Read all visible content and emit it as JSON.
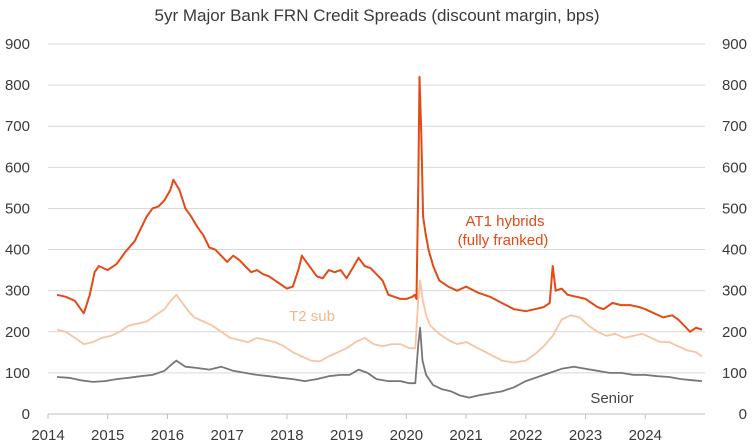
{
  "chart_data": {
    "type": "line",
    "title": "5yr Major Bank FRN Credit Spreads (discount margin, bps)",
    "xlabel": "",
    "ylabel": "",
    "xlim": [
      2014.0,
      2025.0
    ],
    "ylim": [
      0,
      900
    ],
    "yticks": [
      "0",
      "100",
      "200",
      "300",
      "400",
      "500",
      "600",
      "700",
      "800",
      "900"
    ],
    "xticks": [
      "2014",
      "2015",
      "2016",
      "2017",
      "2018",
      "2019",
      "2020",
      "2021",
      "2022",
      "2023",
      "2024"
    ],
    "grid": true,
    "legend": "none (series labelled directly on chart)",
    "series": [
      {
        "name": "AT1 hybrids\n(fully franked)",
        "label_lines": [
          "AT1 hybrids",
          "(fully franked)"
        ],
        "color": "#e34a16",
        "x": [
          2014.15,
          2014.3,
          2014.45,
          2014.55,
          2014.6,
          2014.7,
          2014.78,
          2014.85,
          2015.0,
          2015.15,
          2015.3,
          2015.45,
          2015.55,
          2015.65,
          2015.75,
          2015.85,
          2015.95,
          2016.05,
          2016.1,
          2016.2,
          2016.3,
          2016.4,
          2016.5,
          2016.6,
          2016.7,
          2016.8,
          2016.9,
          2017.0,
          2017.1,
          2017.2,
          2017.3,
          2017.4,
          2017.5,
          2017.6,
          2017.7,
          2017.8,
          2017.9,
          2018.0,
          2018.1,
          2018.2,
          2018.25,
          2018.3,
          2018.4,
          2018.5,
          2018.6,
          2018.7,
          2018.8,
          2018.9,
          2019.0,
          2019.1,
          2019.2,
          2019.3,
          2019.4,
          2019.5,
          2019.6,
          2019.7,
          2019.8,
          2019.9,
          2020.0,
          2020.1,
          2020.14,
          2020.17,
          2020.2,
          2020.22,
          2020.25,
          2020.28,
          2020.32,
          2020.37,
          2020.45,
          2020.55,
          2020.7,
          2020.85,
          2021.0,
          2021.2,
          2021.4,
          2021.6,
          2021.8,
          2022.0,
          2022.15,
          2022.3,
          2022.4,
          2022.45,
          2022.5,
          2022.6,
          2022.7,
          2022.85,
          2023.0,
          2023.1,
          2023.2,
          2023.3,
          2023.45,
          2023.6,
          2023.75,
          2023.9,
          2024.0,
          2024.15,
          2024.3,
          2024.45,
          2024.55,
          2024.65,
          2024.75,
          2024.85,
          2024.95
        ],
        "values": [
          290,
          285,
          275,
          255,
          245,
          290,
          345,
          360,
          350,
          365,
          395,
          420,
          450,
          480,
          500,
          505,
          520,
          545,
          570,
          545,
          500,
          480,
          455,
          435,
          405,
          400,
          385,
          370,
          385,
          375,
          360,
          345,
          350,
          340,
          335,
          325,
          315,
          305,
          310,
          355,
          385,
          375,
          355,
          335,
          330,
          350,
          345,
          350,
          330,
          355,
          380,
          360,
          355,
          340,
          325,
          290,
          285,
          280,
          280,
          285,
          290,
          280,
          560,
          820,
          680,
          480,
          440,
          400,
          360,
          325,
          310,
          300,
          310,
          295,
          285,
          270,
          255,
          250,
          255,
          260,
          270,
          360,
          300,
          305,
          290,
          285,
          280,
          270,
          260,
          255,
          270,
          265,
          265,
          260,
          255,
          245,
          235,
          240,
          230,
          215,
          200,
          210,
          205
        ]
      },
      {
        "name": "T2 sub",
        "color": "#f5c4a4",
        "x": [
          2014.15,
          2014.3,
          2014.45,
          2014.6,
          2014.75,
          2014.9,
          2015.05,
          2015.2,
          2015.35,
          2015.5,
          2015.65,
          2015.8,
          2015.95,
          2016.05,
          2016.15,
          2016.25,
          2016.35,
          2016.45,
          2016.6,
          2016.75,
          2016.9,
          2017.05,
          2017.2,
          2017.35,
          2017.5,
          2017.65,
          2017.8,
          2017.95,
          2018.1,
          2018.25,
          2018.4,
          2018.55,
          2018.7,
          2018.85,
          2019.0,
          2019.15,
          2019.3,
          2019.45,
          2019.6,
          2019.75,
          2019.9,
          2020.05,
          2020.15,
          2020.2,
          2020.23,
          2020.27,
          2020.33,
          2020.4,
          2020.55,
          2020.7,
          2020.85,
          2021.0,
          2021.2,
          2021.4,
          2021.6,
          2021.8,
          2022.0,
          2022.15,
          2022.3,
          2022.45,
          2022.6,
          2022.75,
          2022.9,
          2023.05,
          2023.2,
          2023.35,
          2023.5,
          2023.65,
          2023.8,
          2023.95,
          2024.1,
          2024.25,
          2024.4,
          2024.55,
          2024.7,
          2024.85,
          2024.95
        ],
        "values": [
          205,
          200,
          185,
          170,
          175,
          185,
          190,
          200,
          215,
          220,
          225,
          240,
          255,
          275,
          290,
          270,
          250,
          235,
          225,
          215,
          200,
          185,
          180,
          175,
          185,
          180,
          175,
          165,
          150,
          140,
          130,
          128,
          140,
          150,
          160,
          175,
          185,
          170,
          165,
          170,
          170,
          160,
          160,
          280,
          325,
          280,
          240,
          215,
          195,
          180,
          170,
          175,
          160,
          145,
          130,
          125,
          130,
          145,
          165,
          190,
          230,
          240,
          235,
          215,
          200,
          190,
          195,
          185,
          190,
          195,
          185,
          175,
          175,
          165,
          155,
          150,
          140
        ]
      },
      {
        "name": "Senior",
        "color": "#777777",
        "x": [
          2014.15,
          2014.35,
          2014.55,
          2014.75,
          2014.95,
          2015.15,
          2015.35,
          2015.55,
          2015.75,
          2015.95,
          2016.05,
          2016.15,
          2016.3,
          2016.5,
          2016.7,
          2016.9,
          2017.1,
          2017.3,
          2017.5,
          2017.7,
          2017.9,
          2018.1,
          2018.3,
          2018.5,
          2018.7,
          2018.9,
          2019.05,
          2019.2,
          2019.35,
          2019.5,
          2019.7,
          2019.9,
          2020.05,
          2020.15,
          2020.2,
          2020.23,
          2020.27,
          2020.33,
          2020.45,
          2020.6,
          2020.75,
          2020.9,
          2021.05,
          2021.2,
          2021.4,
          2021.6,
          2021.8,
          2022.0,
          2022.2,
          2022.4,
          2022.6,
          2022.8,
          2023.0,
          2023.2,
          2023.4,
          2023.6,
          2023.8,
          2024.0,
          2024.2,
          2024.4,
          2024.6,
          2024.8,
          2024.95
        ],
        "values": [
          90,
          88,
          82,
          78,
          80,
          85,
          88,
          92,
          95,
          105,
          118,
          130,
          115,
          112,
          108,
          115,
          105,
          100,
          95,
          92,
          88,
          85,
          80,
          85,
          92,
          95,
          95,
          108,
          100,
          85,
          80,
          80,
          75,
          75,
          170,
          210,
          130,
          95,
          70,
          60,
          55,
          45,
          40,
          45,
          50,
          55,
          65,
          80,
          90,
          100,
          110,
          115,
          110,
          105,
          100,
          100,
          95,
          95,
          92,
          90,
          85,
          82,
          80
        ]
      }
    ]
  }
}
